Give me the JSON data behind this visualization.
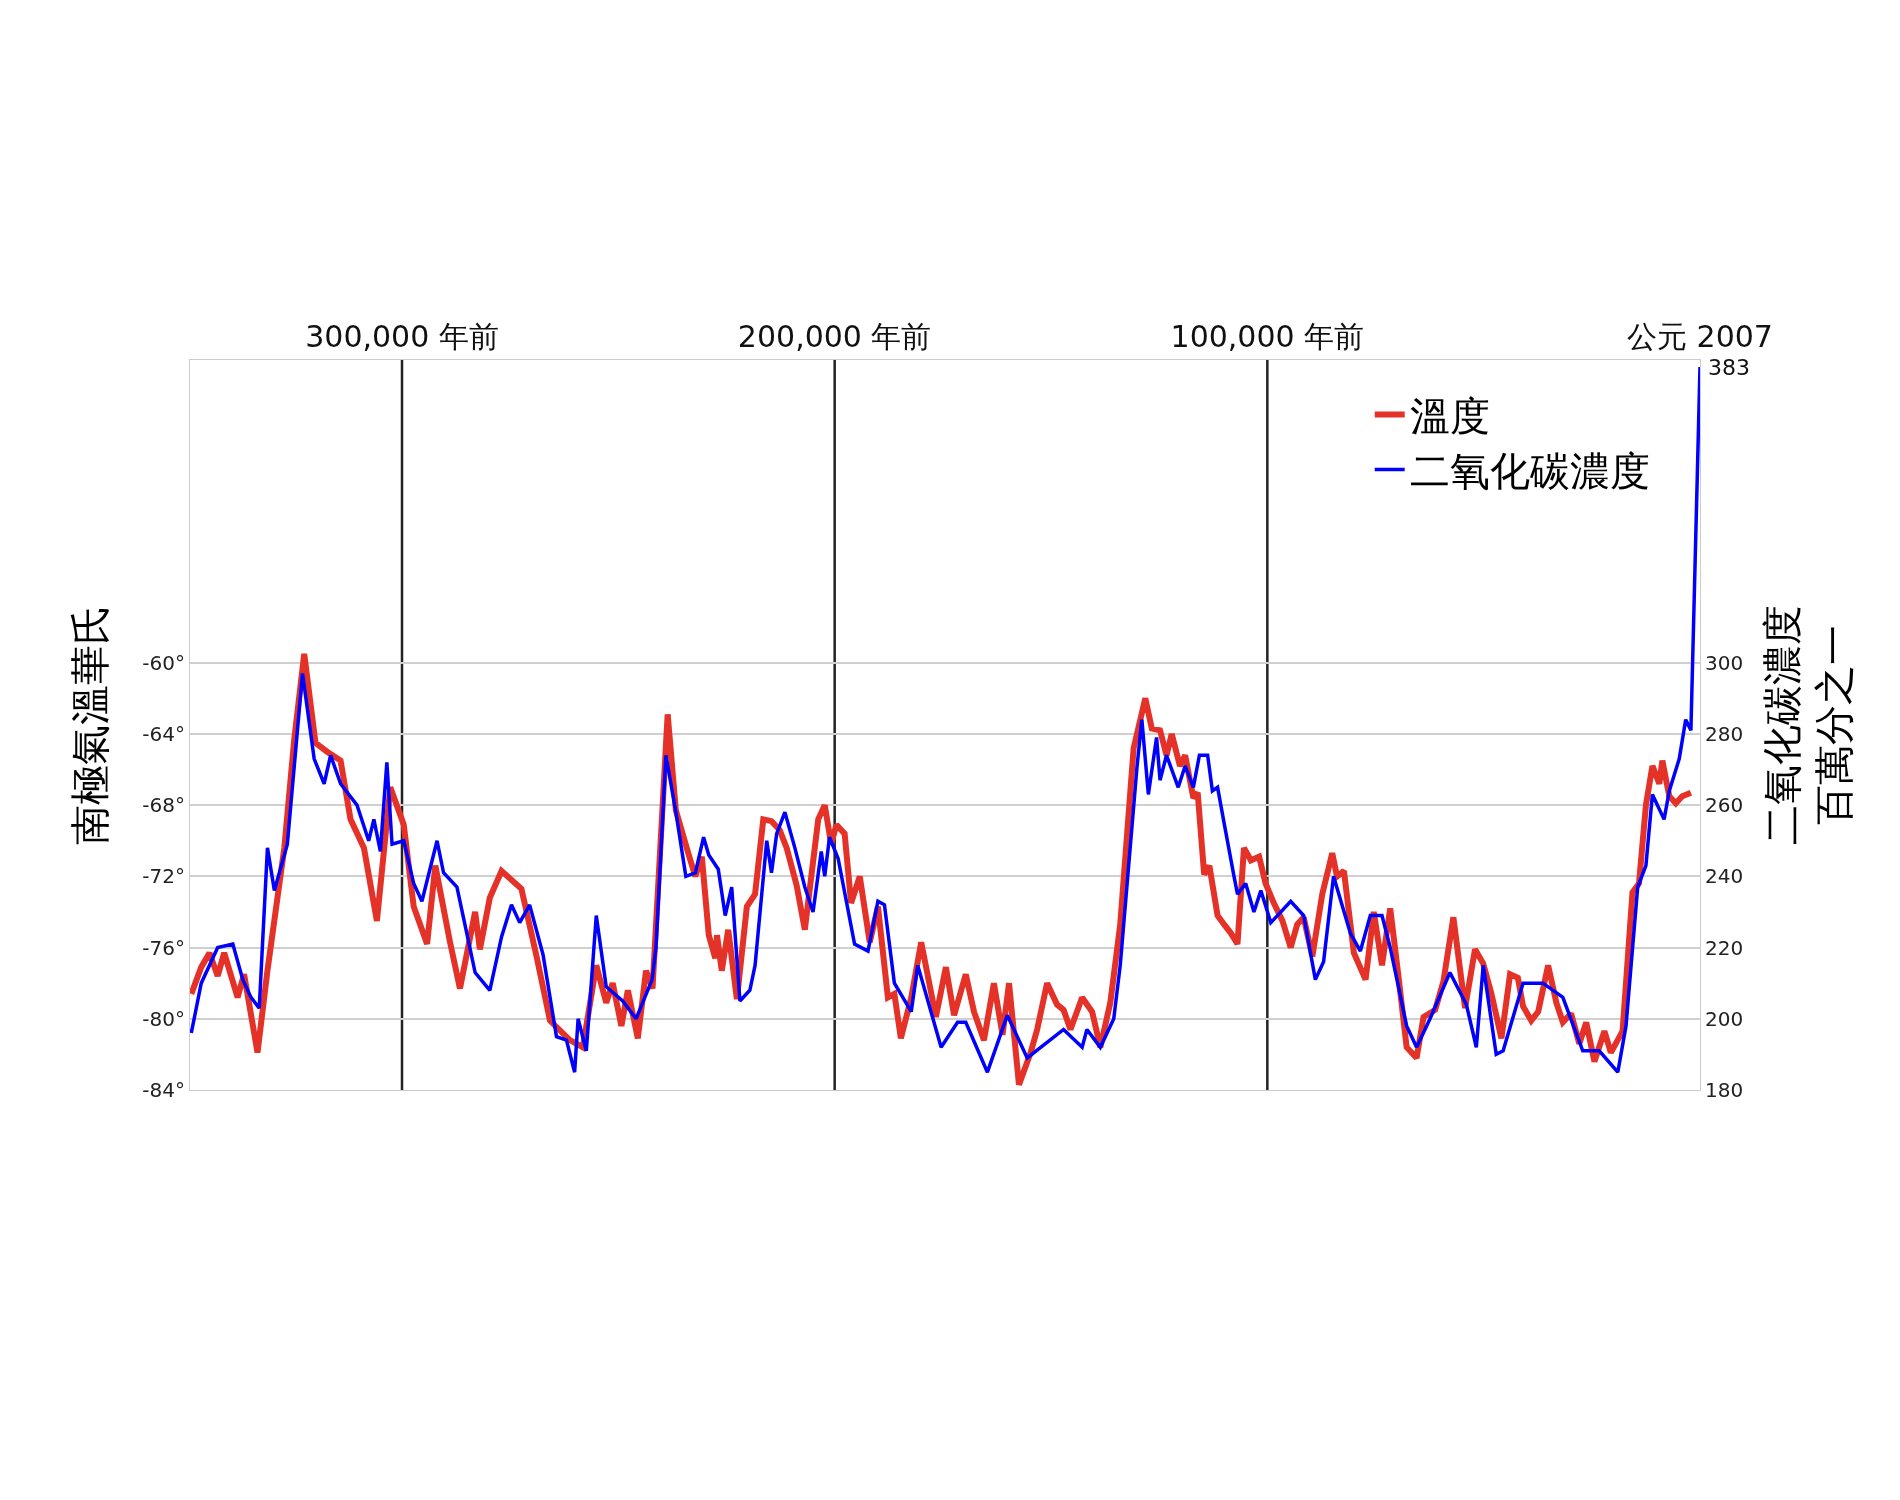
{
  "chart_data": {
    "type": "line",
    "ylabel": "南極氣溫華氏",
    "y2label": "二氧化碳濃度百萬分之一",
    "xlim": [
      349000,
      0
    ],
    "xticks": [
      {
        "value": 300000,
        "label": "300,000 年前"
      },
      {
        "value": 200000,
        "label": "200,000 年前"
      },
      {
        "value": 100000,
        "label": "100,000 年前"
      },
      {
        "value": 0,
        "label": "公元 2007"
      }
    ],
    "ylim": [
      -84,
      -43
    ],
    "yticks": [
      {
        "value": -60,
        "label": "-60°"
      },
      {
        "value": -64,
        "label": "-64°"
      },
      {
        "value": -68,
        "label": "-68°"
      },
      {
        "value": -72,
        "label": "-72°"
      },
      {
        "value": -76,
        "label": "-76°"
      },
      {
        "value": -80,
        "label": "-80°"
      },
      {
        "value": -84,
        "label": "-84°"
      }
    ],
    "y2lim": [
      180,
      385
    ],
    "y2ticks": [
      180,
      200,
      220,
      240,
      260,
      280,
      300
    ],
    "grid": "y",
    "legend": "top right",
    "ref_lines": [
      {
        "axis": "x",
        "value": 300000,
        "color": "#222222"
      },
      {
        "axis": "x",
        "value": 200000,
        "color": "#222222"
      },
      {
        "axis": "x",
        "value": 100000,
        "color": "#222222"
      }
    ],
    "annotations": [
      "383"
    ],
    "series": [
      {
        "name": "溫度",
        "color": "#e53228",
        "x": [
          348700,
          346400,
          344500,
          342600,
          341100,
          338000,
          336500,
          333400,
          331100,
          327200,
          324900,
          322600,
          320000,
          317300,
          314200,
          311900,
          308800,
          305800,
          302700,
          299600,
          297300,
          294200,
          292300,
          288900,
          286600,
          283100,
          282000,
          279700,
          277000,
          272400,
          268900,
          265800,
          261200,
          258200,
          255100,
          252800,
          251300,
          249300,
          247800,
          245500,
          243600,
          242100,
          238600,
          236700,
          233600,
          232200,
          230700,
          229100,
          227600,
          227200,
          226100,
          224600,
          222600,
          220300,
          218400,
          216500,
          214600,
          212700,
          211100,
          208800,
          206900,
          205400,
          203800,
          202300,
          200800,
          199600,
          197700,
          196200,
          194200,
          191900,
          190000,
          187700,
          186200,
          184700,
          182300,
          180000,
          176600,
          174300,
          172400,
          169700,
          167800,
          165500,
          163200,
          161200,
          159700,
          157400,
          154700,
          153200,
          150900,
          148600,
          147100,
          145500,
          142800,
          140500,
          138600,
          136300,
          134000,
          130900,
          128200,
          126700,
          124800,
          123300,
          122100,
          120200,
          119000,
          117100,
          116100,
          114600,
          113400,
          111500,
          110000,
          108400,
          106900,
          105400,
          103800,
          101900,
          100400,
          98500,
          96500,
          94600,
          93100,
          91600,
          89600,
          87300,
          85000,
          83900,
          82300,
          80000,
          77300,
          75400,
          73500,
          71600,
          69700,
          67800,
          65500,
          63900,
          61200,
          59300,
          57000,
          54300,
          52000,
          50100,
          48200,
          45900,
          43900,
          42100,
          40900,
          39000,
          37400,
          35100,
          33200,
          31700,
          29800,
          27900,
          26300,
          24400,
          22100,
          20600,
          17900,
          15600,
          14100,
          12500,
          11000,
          9400,
          8700,
          7100,
          5600,
          4100,
          2100
        ],
        "values": [
          -78.6,
          -77.1,
          -76.3,
          -77.6,
          -76.3,
          -78.8,
          -77.5,
          -81.9,
          -77.3,
          -70.4,
          -64.3,
          -59.5,
          -64.5,
          -65.0,
          -65.5,
          -68.8,
          -70.4,
          -74.5,
          -67.0,
          -69.1,
          -73.7,
          -75.8,
          -71.4,
          -75.7,
          -78.3,
          -74.0,
          -76.1,
          -73.2,
          -71.7,
          -72.7,
          -76.5,
          -80.1,
          -81.2,
          -81.6,
          -77.0,
          -79.1,
          -78.0,
          -80.4,
          -78.4,
          -81.1,
          -77.3,
          -78.3,
          -62.9,
          -68.3,
          -70.9,
          -72.0,
          -70.9,
          -75.3,
          -76.6,
          -75.3,
          -77.3,
          -75.0,
          -78.9,
          -73.7,
          -73.0,
          -68.8,
          -68.9,
          -69.4,
          -70.4,
          -72.5,
          -75.0,
          -72.0,
          -68.8,
          -68.0,
          -70.2,
          -69.1,
          -69.6,
          -73.5,
          -72.0,
          -75.7,
          -73.7,
          -78.8,
          -78.6,
          -81.1,
          -78.8,
          -75.7,
          -79.9,
          -77.1,
          -79.8,
          -77.5,
          -79.6,
          -81.2,
          -78.0,
          -80.9,
          -78.0,
          -83.7,
          -81.9,
          -80.6,
          -78.0,
          -79.2,
          -79.5,
          -80.6,
          -78.8,
          -79.6,
          -81.6,
          -79.1,
          -74.7,
          -64.8,
          -62.0,
          -63.7,
          -63.8,
          -65.2,
          -64.0,
          -65.8,
          -65.2,
          -67.6,
          -67.3,
          -71.9,
          -71.4,
          -74.2,
          -74.7,
          -75.2,
          -75.8,
          -70.4,
          -71.1,
          -70.9,
          -72.4,
          -73.5,
          -74.5,
          -76.0,
          -74.7,
          -74.3,
          -76.5,
          -73.0,
          -70.7,
          -72.0,
          -71.7,
          -76.3,
          -77.8,
          -74.0,
          -77.0,
          -73.8,
          -77.6,
          -81.6,
          -82.2,
          -79.9,
          -79.5,
          -77.9,
          -74.3,
          -79.4,
          -76.1,
          -76.9,
          -78.6,
          -81.1,
          -77.5,
          -77.7,
          -79.3,
          -80.1,
          -79.6,
          -77.0,
          -79.1,
          -80.2,
          -79.7,
          -81.4,
          -80.2,
          -82.4,
          -80.7,
          -81.9,
          -80.7,
          -72.9,
          -72.4,
          -68.0,
          -65.8,
          -66.8,
          -65.5,
          -67.5,
          -67.9,
          -67.5,
          -67.3
        ]
      },
      {
        "name": "二氧化碳濃度",
        "color": "#0000ff",
        "axis": "y2",
        "x": [
          348700,
          346400,
          342600,
          339100,
          336800,
          334900,
          333000,
          331100,
          329500,
          326500,
          323000,
          320300,
          318000,
          316500,
          314200,
          310400,
          307700,
          306500,
          305000,
          303500,
          302300,
          299600,
          297300,
          295400,
          291900,
          290400,
          287300,
          283100,
          279700,
          277000,
          274700,
          272800,
          270500,
          267400,
          264300,
          262000,
          260100,
          259300,
          257400,
          255100,
          252800,
          249000,
          245900,
          242200,
          241300,
          239000,
          236700,
          234400,
          232200,
          230300,
          229100,
          226900,
          225300,
          223800,
          221900,
          219600,
          218400,
          215700,
          214600,
          213400,
          211500,
          209200,
          206900,
          205000,
          203100,
          202300,
          201200,
          199200,
          195400,
          192300,
          190000,
          188500,
          186200,
          182300,
          180800,
          175400,
          171600,
          169700,
          164700,
          160100,
          155500,
          147100,
          142800,
          141700,
          138600,
          135500,
          134000,
          130100,
          129000,
          127500,
          125600,
          124800,
          123300,
          120600,
          119000,
          117100,
          115700,
          113800,
          112700,
          111500,
          110000,
          107700,
          106900,
          105000,
          103100,
          101500,
          99200,
          94600,
          91600,
          88900,
          87000,
          84700,
          80800,
          78500,
          76200,
          73500,
          71600,
          67800,
          65500,
          62400,
          57800,
          54000,
          51700,
          50100,
          47100,
          45500,
          40900,
          36300,
          31700,
          27100,
          23300,
          19000,
          17100,
          14400,
          12500,
          11000,
          8300,
          7100,
          4800,
          3300,
          2100,
          0
        ],
        "values": [
          196,
          210,
          220,
          221,
          211,
          206,
          203,
          248,
          236,
          249,
          297,
          273,
          266,
          274,
          266,
          260,
          250,
          256,
          247,
          272,
          249,
          250,
          238,
          233,
          250,
          241,
          237,
          213,
          208,
          223,
          232,
          227,
          232,
          218,
          195,
          194,
          185,
          200,
          191,
          229,
          209,
          205,
          200,
          211,
          220,
          274,
          258,
          240,
          241,
          251,
          246,
          242,
          229,
          237,
          205,
          208,
          215,
          250,
          241,
          252,
          258,
          248,
          237,
          230,
          247,
          240,
          251,
          245,
          221,
          219,
          233,
          232,
          210,
          202,
          215,
          192,
          199,
          199,
          185,
          201,
          189,
          197,
          192,
          197,
          192,
          200,
          215,
          271,
          284,
          263,
          279,
          267,
          274,
          265,
          271,
          265,
          274,
          274,
          264,
          265,
          255,
          240,
          235,
          238,
          230,
          236,
          227,
          233,
          229,
          211,
          216,
          240,
          224,
          219,
          229,
          229,
          220,
          198,
          192,
          200,
          213,
          204,
          192,
          215,
          190,
          191,
          210,
          210,
          206,
          191,
          191,
          185,
          198,
          237,
          243,
          263,
          256,
          264,
          273,
          284,
          281,
          383
        ]
      }
    ]
  }
}
